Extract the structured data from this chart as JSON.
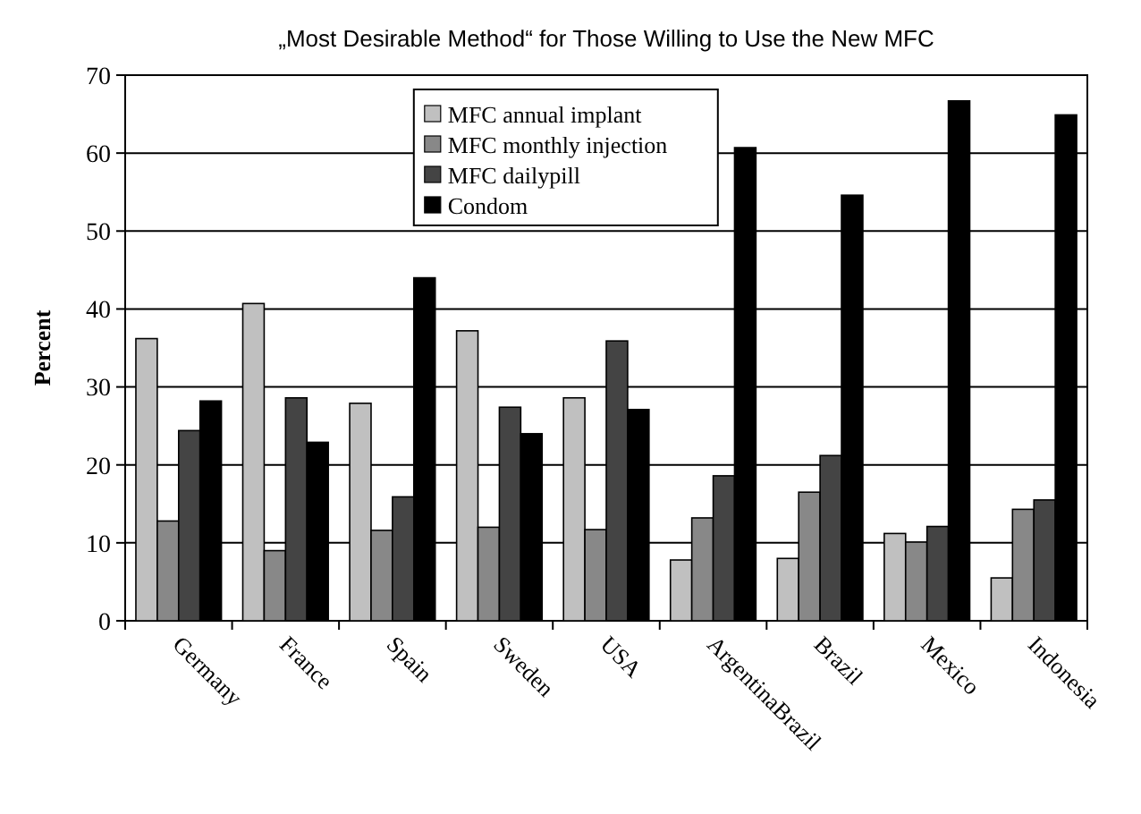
{
  "chart_data": {
    "type": "bar",
    "title": "„Most Desirable Method“ for Those Willing to Use the New MFC",
    "ylabel": "Percent",
    "categories": [
      "Germany",
      "France",
      "Spain",
      "Sweden",
      "USA",
      "ArgentinaBrazil",
      "Brazil",
      "Mexico",
      "Indonesia"
    ],
    "series": [
      {
        "name": "MFC annual implant",
        "color": "#c0c0c0",
        "values": [
          36.2,
          40.7,
          27.9,
          37.2,
          28.6,
          7.8,
          8,
          11.2,
          5.5
        ]
      },
      {
        "name": "MFC monthly injection",
        "color": "#888888",
        "values": [
          12.8,
          9,
          11.6,
          12,
          11.7,
          13.2,
          16.5,
          10.1,
          14.3
        ]
      },
      {
        "name": "MFC dailypill",
        "color": "#444444",
        "values": [
          24.4,
          28.6,
          15.9,
          27.4,
          35.9,
          18.6,
          21.2,
          12.1,
          15.5
        ]
      },
      {
        "name": "Condom",
        "color": "#000000",
        "values": [
          28.2,
          22.9,
          44,
          24,
          27.1,
          60.7,
          54.6,
          66.7,
          64.9
        ]
      }
    ],
    "ylim": [
      0,
      70
    ],
    "yticks": [
      0,
      10,
      20,
      30,
      40,
      50,
      60,
      70
    ],
    "grid": "y",
    "legend": "top"
  }
}
